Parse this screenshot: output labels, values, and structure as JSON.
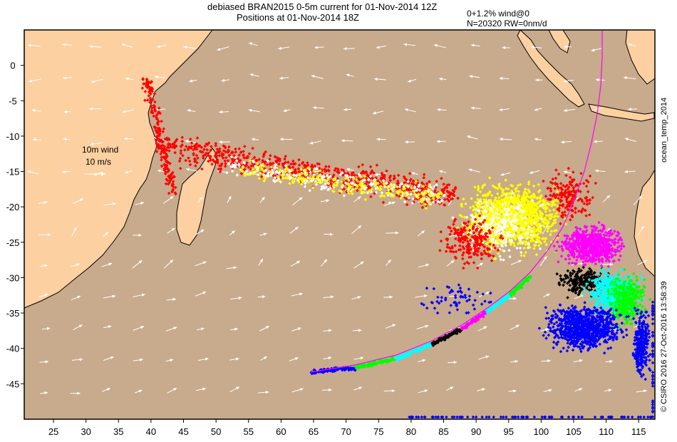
{
  "header": {
    "title_line1": "debiased BRAN2015 0-5m current for 01-Nov-2014 12Z",
    "title_line2": "Positions at 01-Nov-2014 18Z",
    "param_line1": "0+1.2% wind@0",
    "param_line2": "N=20320 RW=0nm/d"
  },
  "side_labels": {
    "right_top": "ocean_temp_2014",
    "right_bottom": "© CSIRO 2016  27-Oct-2016 13:58:39"
  },
  "legend": {
    "wind_label": "10m wind",
    "wind_scale": "10 m/s"
  },
  "map": {
    "lon_range": [
      20.5,
      117.5
    ],
    "lat_range": [
      -50,
      5
    ],
    "x_ticks": [
      25,
      30,
      35,
      40,
      45,
      50,
      55,
      60,
      65,
      70,
      75,
      80,
      85,
      90,
      95,
      100,
      105,
      110,
      115
    ],
    "y_ticks": [
      0,
      -5,
      -10,
      -15,
      -20,
      -25,
      -30,
      -35,
      -40,
      -45
    ],
    "colors": {
      "ocean": "#c8aa8c",
      "land": "#fcd0a0",
      "frame": "#000000",
      "wind_arrow": "#ffffff",
      "track_line": "#ff00ff"
    },
    "particle_groups": [
      {
        "color": "#ff0000",
        "region": "west-band"
      },
      {
        "color": "#ffffff",
        "region": "central-band"
      },
      {
        "color": "#ffff00",
        "region": "east-cluster"
      },
      {
        "color": "#ff00ff",
        "region": "southeast-cluster"
      },
      {
        "color": "#000000",
        "region": "southeast-cluster"
      },
      {
        "color": "#00ffff",
        "region": "southeast-cluster"
      },
      {
        "color": "#00ff00",
        "region": "southeast-cluster"
      },
      {
        "color": "#0000ff",
        "region": "south-cluster"
      }
    ]
  }
}
